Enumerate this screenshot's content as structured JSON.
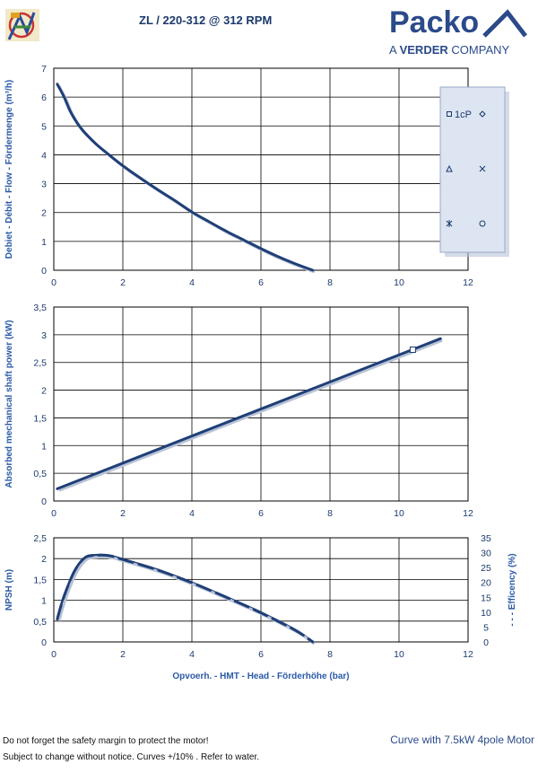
{
  "header": {
    "title": "ZL   / 220-312 @ 312 RPM",
    "brand": "Packo",
    "brand_sub_prefix": "A",
    "brand_sub_bold": "VERDER",
    "brand_sub_suffix": "COMPANY"
  },
  "footer": {
    "note1": "Do not forget the safety margin to protect the motor!",
    "note2": "Subject to change without notice. Curves +/10% . Refer to water.",
    "motor": "Curve with 7.5kW 4pole Motor"
  },
  "legend": {
    "label_1cp": "1cP",
    "markers": [
      "square",
      "diamond",
      "triangle",
      "cross",
      "star",
      "circle"
    ]
  },
  "colors": {
    "curve": "#1f3f77",
    "grid": "#000000",
    "axis_text": "#1b3a6b",
    "axis_label": "#2b5aa6",
    "legend_bg": "#dde4f2"
  },
  "chart_data": [
    {
      "type": "line",
      "ylabel": "Debiet - Débit - Flow - Fördermenge (m³/h)",
      "xlim": [
        0,
        12
      ],
      "ylim": [
        0,
        7
      ],
      "xticks": [
        "0",
        "2",
        "4",
        "6",
        "8",
        "10",
        "12"
      ],
      "yticks": [
        "0",
        "1",
        "2",
        "3",
        "4",
        "5",
        "6",
        "7"
      ],
      "series": [
        {
          "x": [
            0.1,
            0.3,
            0.5,
            0.8,
            1.2,
            1.6,
            2.0,
            2.5,
            3.0,
            3.5,
            4.0,
            4.5,
            5.0,
            5.5,
            6.0,
            6.5,
            7.0,
            7.5
          ],
          "y": [
            6.45,
            6.0,
            5.45,
            4.9,
            4.4,
            4.0,
            3.62,
            3.2,
            2.8,
            2.42,
            2.02,
            1.68,
            1.35,
            1.05,
            0.75,
            0.47,
            0.22,
            0.0
          ]
        }
      ]
    },
    {
      "type": "line",
      "ylabel": "Absorbed mechanical shaft power (kW)",
      "xlim": [
        0,
        12
      ],
      "ylim": [
        0,
        3.5
      ],
      "xticks": [
        "0",
        "2",
        "4",
        "6",
        "8",
        "10",
        "12"
      ],
      "yticks": [
        "0",
        "0,5",
        "1",
        "1,5",
        "2",
        "2,5",
        "3",
        "3,5"
      ],
      "series": [
        {
          "name": "1cP",
          "x": [
            0.1,
            11.2
          ],
          "y": [
            0.22,
            2.93
          ]
        }
      ],
      "marker_point": {
        "x": 10.4,
        "y": 2.73
      }
    },
    {
      "type": "line",
      "ylabel": "NPSH (m)",
      "y2label": "- - -  Efficency  (%)",
      "xlabel": "Opvoerh. - HMT - Head - Förderhöhe (bar)",
      "xlim": [
        0,
        12
      ],
      "ylim": [
        0,
        2.5
      ],
      "y2lim": [
        0,
        35
      ],
      "xticks": [
        "0",
        "2",
        "4",
        "6",
        "8",
        "10",
        "12"
      ],
      "yticks": [
        "0",
        "0,5",
        "1",
        "1,5",
        "2",
        "2,5"
      ],
      "y2ticks": [
        "0",
        "5",
        "10",
        "15",
        "20",
        "25",
        "30",
        "35"
      ],
      "series": [
        {
          "name": "NPSH",
          "x": [
            0.1,
            0.3,
            0.6,
            0.9,
            1.2,
            1.6,
            2.0,
            3.0,
            4.0,
            5.0,
            6.0,
            7.0,
            7.5
          ],
          "y": [
            0.55,
            1.1,
            1.7,
            2.02,
            2.08,
            2.07,
            1.98,
            1.73,
            1.42,
            1.07,
            0.7,
            0.28,
            0.0
          ]
        },
        {
          "name": "Efficency",
          "axis": "y2",
          "x": [
            0.1,
            0.3,
            0.6,
            0.9,
            1.2,
            1.6,
            2.0,
            3.0,
            4.0,
            5.0,
            6.0,
            7.0,
            7.5
          ],
          "y": [
            7.7,
            15.4,
            23.8,
            28.3,
            29.1,
            29.0,
            27.7,
            24.2,
            19.9,
            15.0,
            9.8,
            3.9,
            0.0
          ]
        }
      ]
    }
  ]
}
